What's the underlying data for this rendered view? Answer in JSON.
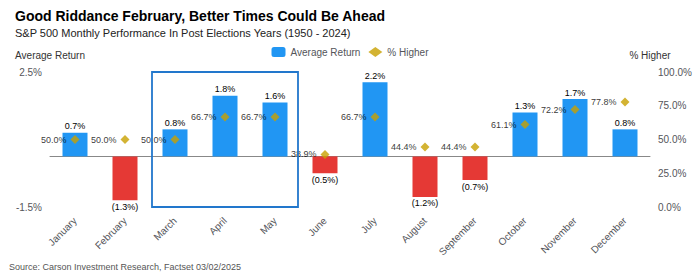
{
  "chart_data": {
    "type": "bar",
    "title": "Good Riddance February, Better Times Could Be Ahead",
    "subtitle": "S&P 500 Monthly Performance In Post Elections Years (1950 - 2024)",
    "source": "Source: Carson Investment Research, Factset 03/02/2025",
    "ylabel": "Average Return",
    "y2label": "% Higher",
    "categories": [
      "January",
      "February",
      "March",
      "April",
      "May",
      "June",
      "July",
      "August",
      "September",
      "October",
      "November",
      "December"
    ],
    "series": [
      {
        "name": "Average Return",
        "type": "bar",
        "color": "#2196F3",
        "colors": [
          "#2196F3",
          "#E53935",
          "#2196F3",
          "#2196F3",
          "#2196F3",
          "#E53935",
          "#2196F3",
          "#E53935",
          "#E53935",
          "#2196F3",
          "#2196F3",
          "#2196F3"
        ],
        "values": [
          0.7,
          -1.3,
          0.8,
          1.8,
          1.6,
          -0.5,
          2.2,
          -1.2,
          -0.7,
          1.3,
          1.7,
          0.8
        ],
        "value_labels": [
          "0.7%",
          "(1.3%)",
          "0.8%",
          "1.8%",
          "1.6%",
          "(0.5%)",
          "2.2%",
          "(1.2%)",
          "(0.7%)",
          "1.3%",
          "1.7%",
          "0.8%"
        ],
        "data_labels": true
      },
      {
        "name": "% Higher",
        "type": "scatter",
        "axis": "y2",
        "color": "#C8A000",
        "marker": "diamond",
        "values": [
          50.0,
          50.0,
          50.0,
          66.7,
          66.7,
          38.9,
          66.7,
          44.4,
          44.4,
          61.1,
          72.2,
          77.8
        ],
        "value_labels": [
          "50.0%",
          "50.0%",
          "50.0%",
          "66.7%",
          "66.7%",
          "38.9%",
          "66.7%",
          "44.4%",
          "44.4%",
          "61.1%",
          "72.2%",
          "77.8%"
        ],
        "data_labels": true
      }
    ],
    "ylim": [
      -1.5,
      2.5
    ],
    "yticks": [
      {
        "value": -1.5,
        "label": "-1.5%"
      },
      {
        "value": 2.5,
        "label": "2.5%"
      }
    ],
    "y2lim": [
      0.0,
      100.0
    ],
    "y2ticks": [
      {
        "value": 0,
        "label": "0.0%"
      },
      {
        "value": 25,
        "label": "25.0%"
      },
      {
        "value": 50,
        "label": "50.0%"
      },
      {
        "value": 75,
        "label": "75.0%"
      },
      {
        "value": 100,
        "label": "100.0%"
      }
    ],
    "highlight": {
      "categories": [
        "March",
        "April",
        "May"
      ],
      "color": "#2277CC"
    },
    "grid": false,
    "legend": "top"
  }
}
